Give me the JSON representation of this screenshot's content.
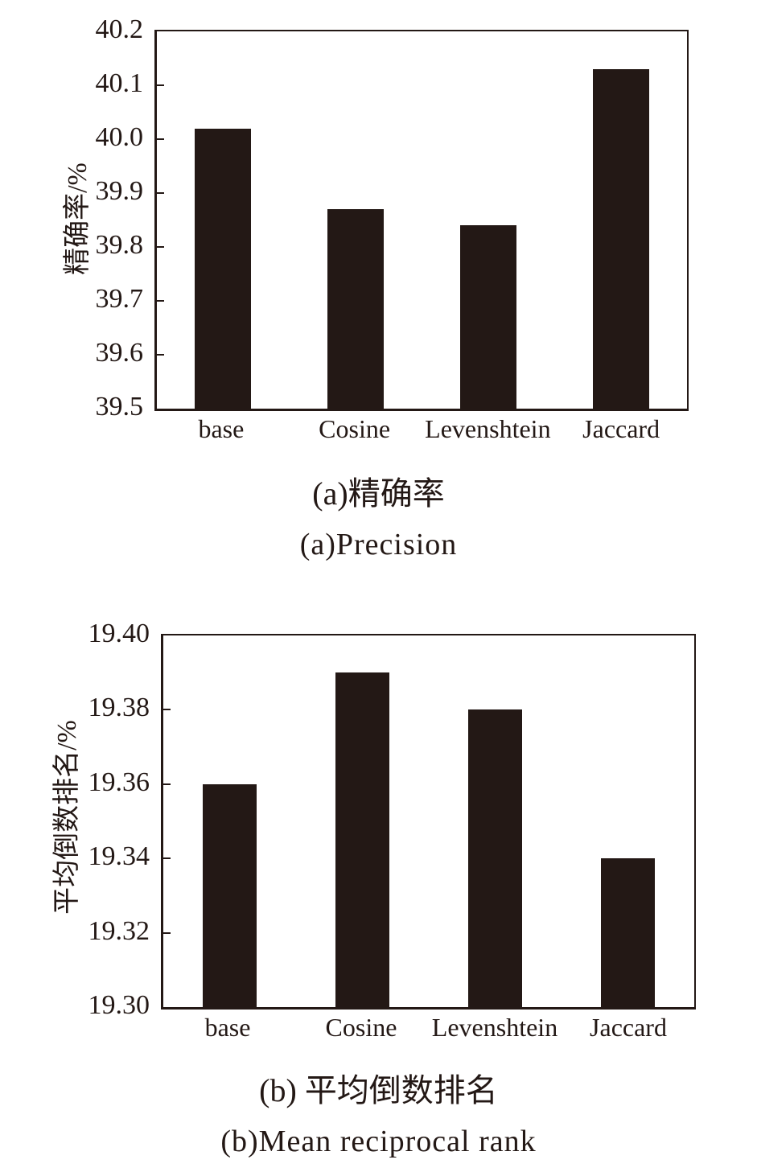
{
  "page": {
    "background": "#ffffff",
    "ink": "#231815"
  },
  "chart_data": [
    {
      "id": "precision",
      "type": "bar",
      "title_zh": "(a)精确率",
      "title_en": "(a)Precision",
      "categories": [
        "base",
        "Cosine",
        "Levenshtein",
        "Jaccard"
      ],
      "values": [
        40.02,
        39.87,
        39.84,
        40.13
      ],
      "ylabel": "精确率/%",
      "xlabel": "",
      "ylim": [
        39.5,
        40.2
      ],
      "yticks": [
        39.5,
        39.6,
        39.7,
        39.8,
        39.9,
        40.0,
        40.1,
        40.2
      ],
      "ytick_labels": [
        "39.5",
        "39.6",
        "39.7",
        "39.8",
        "39.9",
        "40.0",
        "40.1",
        "40.2"
      ],
      "bar_color": "#231815",
      "grid": false,
      "legend": false
    },
    {
      "id": "mean-reciprocal-rank",
      "type": "bar",
      "title_zh": "(b) 平均倒数排名",
      "title_en": "(b)Mean reciprocal rank",
      "categories": [
        "base",
        "Cosine",
        "Levenshtein",
        "Jaccard"
      ],
      "values": [
        19.36,
        19.39,
        19.38,
        19.34
      ],
      "ylabel": "平均倒数排名/%",
      "xlabel": "",
      "ylim": [
        19.3,
        19.4
      ],
      "yticks": [
        19.3,
        19.32,
        19.34,
        19.36,
        19.38,
        19.4
      ],
      "ytick_labels": [
        "19.30",
        "19.32",
        "19.34",
        "19.36",
        "19.38",
        "19.40"
      ],
      "bar_color": "#231815",
      "grid": false,
      "legend": false
    }
  ]
}
